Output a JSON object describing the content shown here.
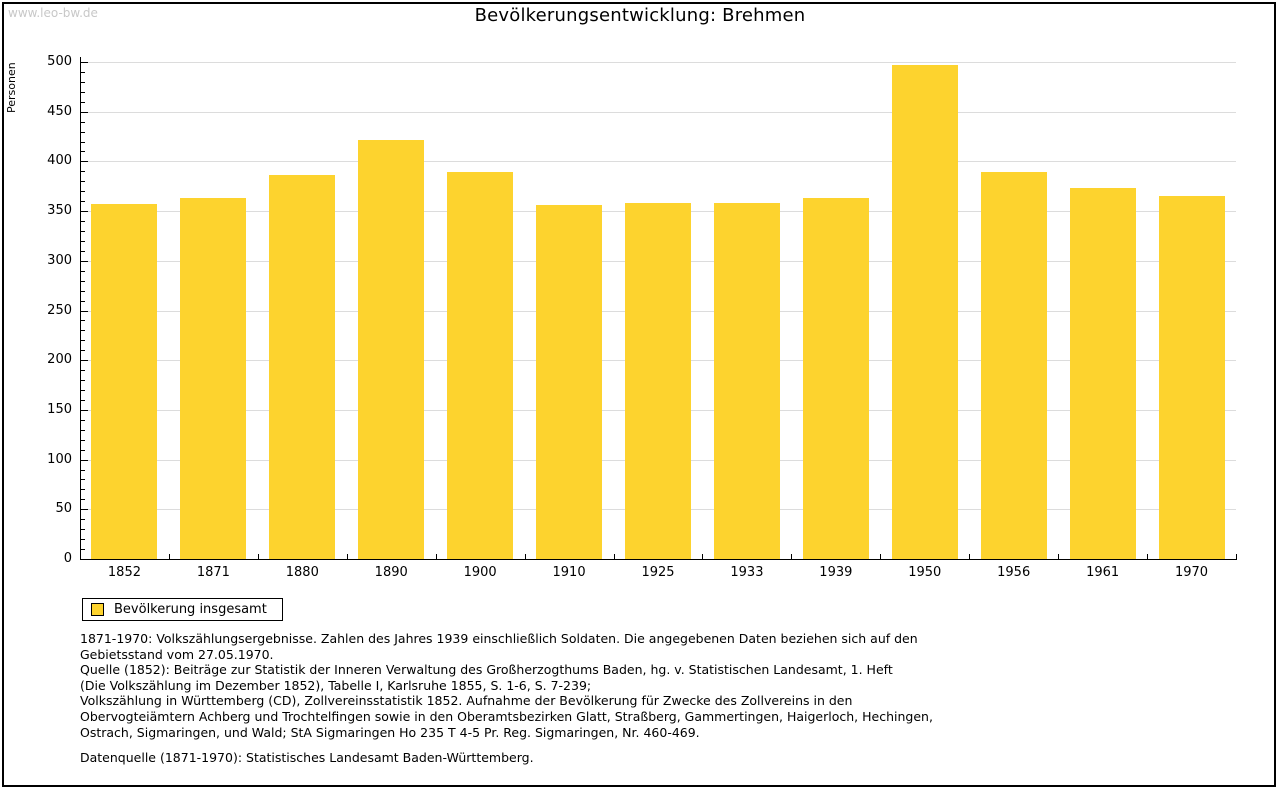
{
  "page": {
    "watermark": "www.leo-bw.de",
    "title": "Bevölkerungsentwicklung: Brehmen"
  },
  "chart_data": {
    "type": "bar",
    "title": "Bevölkerungsentwicklung: Brehmen",
    "ylabel": "Personen",
    "xlabel": "",
    "categories": [
      "1852",
      "1871",
      "1880",
      "1890",
      "1900",
      "1910",
      "1925",
      "1933",
      "1939",
      "1950",
      "1956",
      "1961",
      "1970"
    ],
    "values": [
      357,
      363,
      386,
      422,
      389,
      356,
      358,
      358,
      363,
      497,
      389,
      373,
      365
    ],
    "series_name": "Bevölkerung insgesamt",
    "ylim": [
      0,
      500
    ],
    "yticks": [
      0,
      50,
      100,
      150,
      200,
      250,
      300,
      350,
      400,
      450,
      500
    ],
    "ytick_step": 50,
    "yminor_step": 10,
    "grid": true,
    "legend_position": "bottom-left"
  },
  "legend": {
    "label": "Bevölkerung insgesamt"
  },
  "footer": {
    "lines": [
      "1871-1970: Volkszählungsergebnisse. Zahlen des Jahres 1939 einschließlich Soldaten. Die angegebenen Daten beziehen sich auf den",
      "Gebietsstand vom 27.05.1970.",
      "Quelle (1852): Beiträge zur Statistik der Inneren Verwaltung des Großherzogthums Baden, hg. v. Statistischen Landesamt, 1. Heft",
      "(Die Volkszählung im Dezember 1852), Tabelle I, Karlsruhe 1855, S. 1-6, S. 7-239;",
      "Volkszählung in Württemberg (CD), Zollvereinsstatistik 1852. Aufnahme der Bevölkerung für Zwecke des Zollvereins in den",
      "Obervogteiämtern Achberg und Trochtelfingen sowie in den Oberamtsbezirken Glatt, Straßberg, Gammertingen, Haigerloch, Hechingen,",
      "Ostrach, Sigmaringen, und Wald; StA Sigmaringen Ho 235 T 4-5 Pr. Reg. Sigmaringen, Nr. 460-469."
    ],
    "datasource": "Datenquelle (1871-1970): Statistisches Landesamt Baden-Württemberg."
  },
  "colors": {
    "bar": "#FDD32E",
    "grid": "#DCDCDC",
    "axis": "#000000",
    "watermark": "#C8C8C8",
    "background": "#FFFFFF",
    "border": "#000000"
  }
}
